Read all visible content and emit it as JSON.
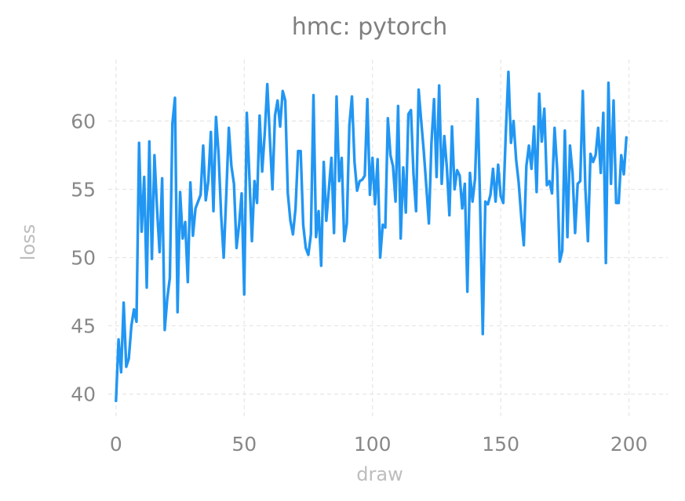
{
  "chart_data": {
    "type": "line",
    "title": "hmc: pytorch",
    "xlabel": "draw",
    "ylabel": "loss",
    "xlim": [
      -3,
      209
    ],
    "ylim": [
      38.2,
      64.5
    ],
    "xticks": [
      0,
      50,
      100,
      150,
      200
    ],
    "yticks": [
      40,
      45,
      50,
      55,
      60
    ],
    "grid": true,
    "series": [
      {
        "color": "#2196f3",
        "x": [
          0,
          1,
          2,
          3,
          4,
          5,
          6,
          7,
          8,
          9,
          10,
          11,
          12,
          13,
          14,
          15,
          16,
          17,
          18,
          19,
          20,
          21,
          22,
          23,
          24,
          25,
          26,
          27,
          28,
          29,
          30,
          31,
          32,
          33,
          34,
          35,
          36,
          37,
          38,
          39,
          40,
          41,
          42,
          43,
          44,
          45,
          46,
          47,
          48,
          49,
          50,
          51,
          52,
          53,
          54,
          55,
          56,
          57,
          58,
          59,
          60,
          61,
          62,
          63,
          64,
          65,
          66,
          67,
          68,
          69,
          70,
          71,
          72,
          73,
          74,
          75,
          76,
          77,
          78,
          79,
          80,
          81,
          82,
          83,
          84,
          85,
          86,
          87,
          88,
          89,
          90,
          91,
          92,
          93,
          94,
          95,
          96,
          97,
          98,
          99,
          100,
          101,
          102,
          103,
          104,
          105,
          106,
          107,
          108,
          109,
          110,
          111,
          112,
          113,
          114,
          115,
          116,
          117,
          118,
          119,
          120,
          121,
          122,
          123,
          124,
          125,
          126,
          127,
          128,
          129,
          130,
          131,
          132,
          133,
          134,
          135,
          136,
          137,
          138,
          139,
          140,
          141,
          142,
          143,
          144,
          145,
          146,
          147,
          148,
          149,
          150,
          151,
          152,
          153,
          154,
          155,
          156,
          157,
          158,
          159,
          160,
          161,
          162,
          163,
          164,
          165,
          166,
          167,
          168,
          169,
          170,
          171,
          172,
          173,
          174,
          175,
          176,
          177,
          178,
          179,
          180,
          181,
          182,
          183,
          184,
          185,
          186,
          187,
          188,
          189,
          190,
          191,
          192,
          193,
          194,
          195,
          196,
          197,
          198,
          199
        ],
        "y": [
          39.5,
          44.0,
          41.6,
          46.7,
          42.0,
          42.6,
          45.0,
          46.2,
          45.3,
          58.4,
          51.9,
          55.9,
          47.8,
          58.5,
          49.9,
          57.5,
          53.6,
          50.4,
          55.8,
          44.7,
          47.0,
          48.5,
          59.8,
          61.7,
          46.0,
          54.8,
          51.4,
          52.6,
          48.2,
          55.5,
          51.6,
          53.6,
          54.1,
          54.6,
          58.2,
          54.2,
          55.6,
          59.2,
          53.4,
          60.3,
          57.6,
          53.1,
          50.0,
          54.6,
          59.5,
          56.7,
          55.4,
          50.7,
          52.4,
          54.7,
          47.3,
          60.6,
          56.0,
          51.2,
          55.6,
          54.0,
          60.4,
          56.3,
          59.1,
          62.7,
          58.7,
          55.0,
          60.4,
          61.5,
          59.6,
          62.2,
          61.5,
          54.7,
          52.7,
          51.7,
          53.6,
          57.8,
          57.8,
          52.4,
          50.7,
          50.2,
          51.7,
          61.9,
          51.5,
          53.4,
          49.4,
          57.0,
          52.7,
          55.0,
          57.3,
          51.8,
          61.8,
          55.6,
          57.3,
          51.2,
          52.5,
          59.7,
          61.8,
          57.0,
          54.9,
          55.6,
          55.7,
          56.0,
          61.6,
          54.6,
          57.3,
          53.9,
          57.2,
          50.0,
          52.4,
          52.2,
          60.2,
          57.5,
          56.7,
          54.1,
          61.1,
          51.4,
          56.6,
          53.3,
          60.5,
          60.8,
          56.1,
          53.4,
          62.3,
          60.0,
          57.8,
          55.2,
          52.5,
          58.4,
          61.6,
          55.9,
          62.6,
          55.4,
          58.9,
          56.6,
          53.1,
          59.6,
          55.0,
          56.4,
          56.0,
          53.6,
          55.4,
          47.5,
          56.2,
          54.1,
          55.8,
          61.6,
          53.6,
          44.4,
          54.1,
          53.9,
          54.6,
          56.5,
          54.1,
          56.8,
          54.5,
          54.0,
          59.2,
          63.6,
          58.4,
          60.0,
          57.2,
          55.5,
          53.0,
          50.9,
          56.7,
          58.2,
          56.5,
          59.6,
          54.8,
          62.0,
          58.5,
          60.9,
          55.3,
          55.6,
          54.7,
          59.5,
          56.5,
          49.7,
          50.5,
          59.3,
          51.5,
          58.2,
          56.2,
          51.8,
          55.4,
          55.6,
          62.2,
          55.1,
          51.2,
          57.6,
          57.0,
          57.5,
          59.5,
          56.2,
          60.6,
          49.6,
          62.8,
          55.4,
          61.5,
          54.0,
          54.0,
          57.5,
          56.1,
          58.8
        ]
      }
    ]
  }
}
